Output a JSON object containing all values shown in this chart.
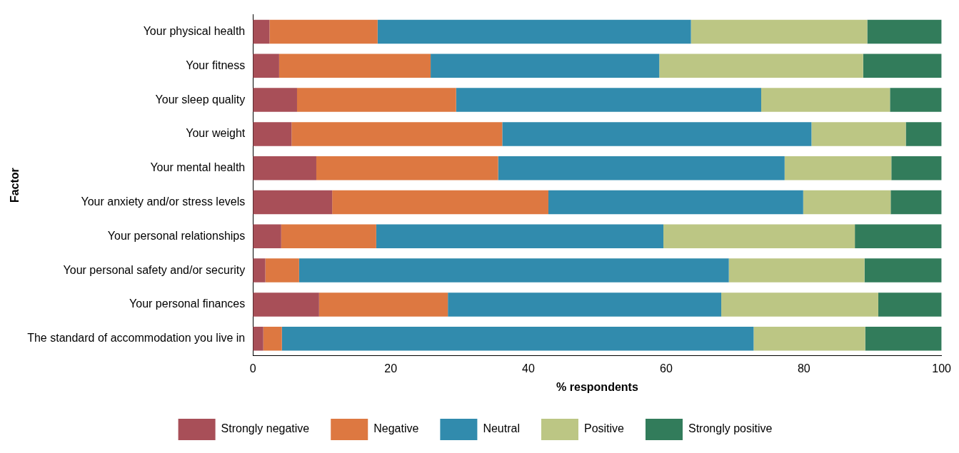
{
  "chart_data": {
    "type": "bar",
    "orientation": "horizontal",
    "stacked": true,
    "xlabel": "% respondents",
    "ylabel": "Factor",
    "legend": "bottom",
    "categories": [
      "Your physical health",
      "Your fitness",
      "Your sleep quality",
      "Your weight",
      "Your mental health",
      "Your anxiety and/or stress levels",
      "Your personal relationships",
      "Your personal safety and/or security",
      "Your personal finances",
      "The standard of accommodation you live in"
    ],
    "xlim": [
      0,
      100
    ],
    "xticks": [
      0,
      20,
      40,
      60,
      80,
      100
    ],
    "series": [
      {
        "name": "Strongly negative",
        "color": "#a84f58",
        "values": [
          2.4,
          3.8,
          6.4,
          5.6,
          9.2,
          11.5,
          4.1,
          1.8,
          9.6,
          1.5
        ]
      },
      {
        "name": "Negative",
        "color": "#dd7841",
        "values": [
          15.7,
          22.0,
          23.1,
          30.6,
          26.4,
          31.4,
          13.8,
          4.9,
          18.7,
          2.7
        ]
      },
      {
        "name": "Neutral",
        "color": "#318bad",
        "values": [
          45.5,
          33.2,
          44.3,
          44.9,
          41.6,
          37.0,
          41.7,
          62.4,
          39.7,
          68.5
        ]
      },
      {
        "name": "Positive",
        "color": "#bcc684",
        "values": [
          25.6,
          29.6,
          18.7,
          13.7,
          15.5,
          12.7,
          27.8,
          19.7,
          22.8,
          16.2
        ]
      },
      {
        "name": "Strongly positive",
        "color": "#327c5b",
        "values": [
          10.8,
          11.4,
          7.5,
          5.2,
          7.3,
          7.4,
          12.6,
          11.2,
          9.2,
          11.1
        ]
      }
    ]
  }
}
